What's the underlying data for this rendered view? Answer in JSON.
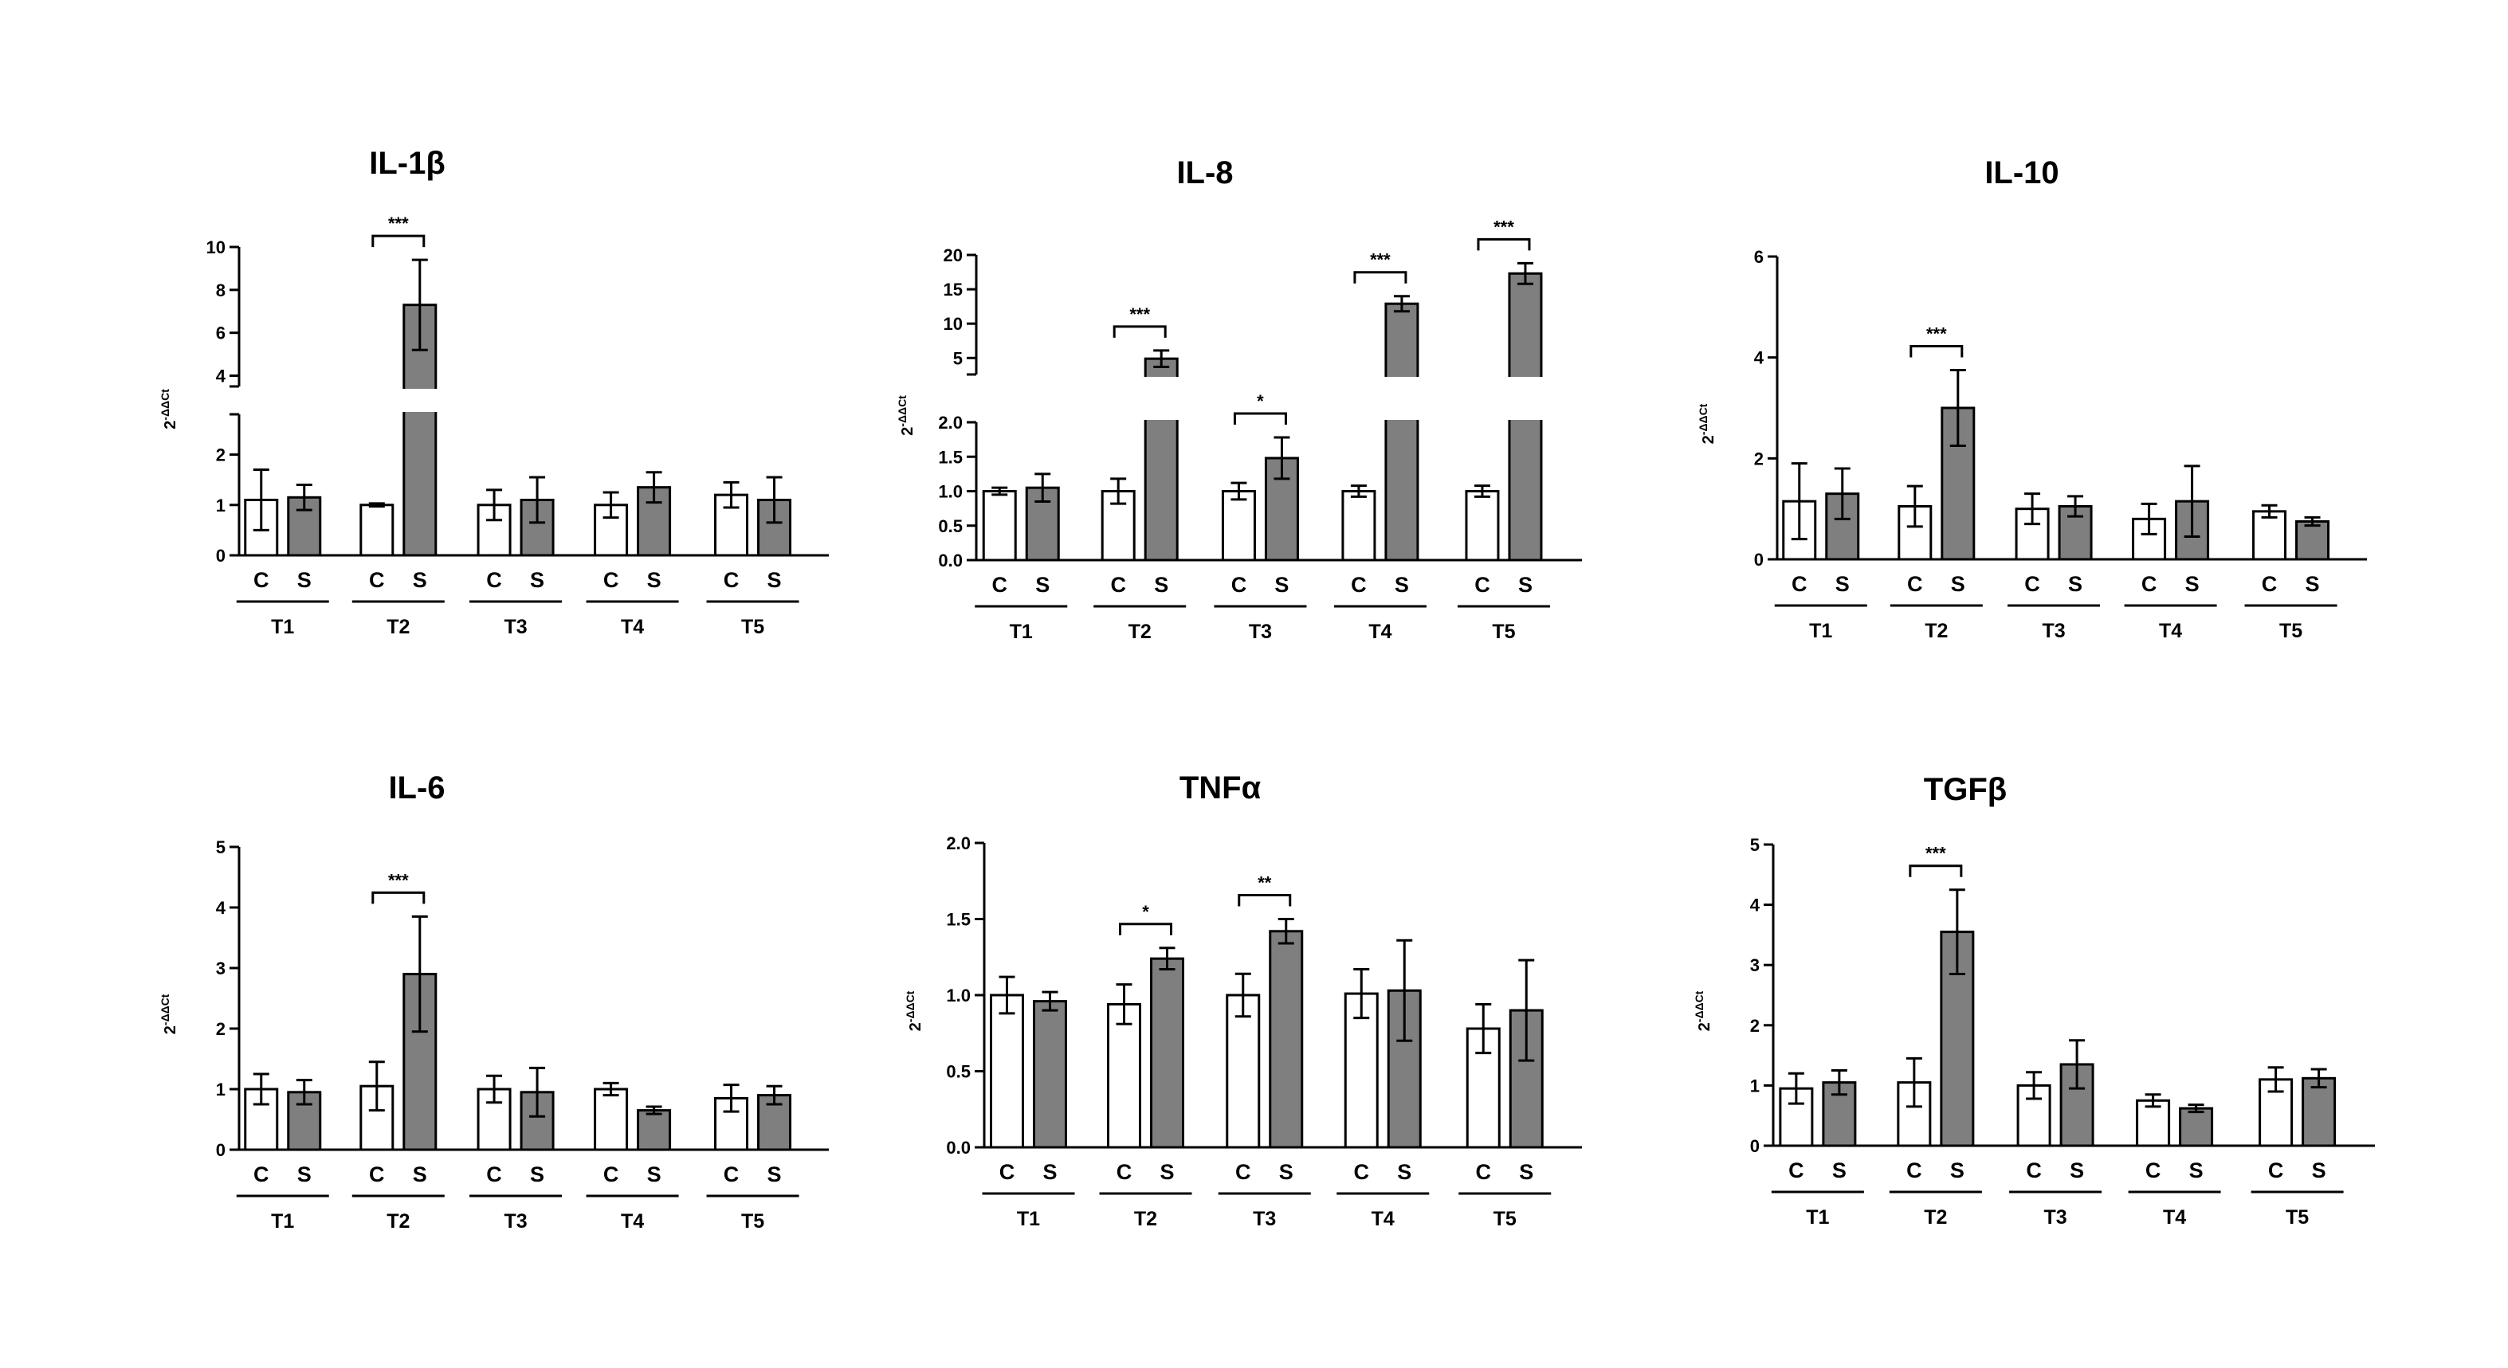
{
  "figure": {
    "background": "#ffffff",
    "control_color": "#ffffff",
    "stim_color": "#7f7f7f",
    "ink": "#000000"
  },
  "chart_data": [
    {
      "type": "bar",
      "title": "IL-1β",
      "ylabel": "2-ΔΔCt",
      "groups": [
        "T1",
        "T2",
        "T3",
        "T4",
        "T5"
      ],
      "conditions": [
        "C",
        "S"
      ],
      "axis_break": {
        "lower": [
          0,
          2.8
        ],
        "upper": [
          3.5,
          10
        ]
      },
      "lower_ticks": [
        0,
        1,
        2
      ],
      "upper_ticks": [
        4,
        6,
        8,
        10
      ],
      "series": [
        {
          "name": "C",
          "values": [
            1.1,
            1.0,
            1.0,
            1.0,
            1.2
          ],
          "errors": [
            0.6,
            0.03,
            0.3,
            0.25,
            0.25
          ]
        },
        {
          "name": "S",
          "values": [
            1.15,
            7.3,
            1.1,
            1.35,
            1.1
          ],
          "errors": [
            0.25,
            2.1,
            0.45,
            0.3,
            0.45
          ]
        }
      ],
      "significance": [
        {
          "group": "T2",
          "label": "***"
        }
      ]
    },
    {
      "type": "bar",
      "title": "IL-8",
      "ylabel": "2-ΔΔCt",
      "groups": [
        "T1",
        "T2",
        "T3",
        "T4",
        "T5"
      ],
      "conditions": [
        "C",
        "S"
      ],
      "axis_break": {
        "lower": [
          0,
          2.0
        ],
        "upper": [
          2.6,
          20
        ]
      },
      "lower_ticks": [
        "0.0",
        "0.5",
        "1.0",
        "1.5",
        "2.0"
      ],
      "upper_ticks": [
        5,
        10,
        15,
        20
      ],
      "series": [
        {
          "name": "C",
          "values": [
            1.0,
            1.0,
            1.0,
            1.0,
            1.0
          ],
          "errors": [
            0.05,
            0.18,
            0.12,
            0.08,
            0.08
          ]
        },
        {
          "name": "S",
          "values": [
            1.05,
            4.9,
            1.48,
            12.9,
            17.3
          ],
          "errors": [
            0.2,
            1.2,
            0.3,
            1.1,
            1.5
          ]
        }
      ],
      "significance": [
        {
          "group": "T2",
          "label": "***"
        },
        {
          "group": "T3",
          "label": "*"
        },
        {
          "group": "T4",
          "label": "***"
        },
        {
          "group": "T5",
          "label": "***"
        }
      ]
    },
    {
      "type": "bar",
      "title": "IL-10",
      "ylabel": "2-ΔΔCt",
      "groups": [
        "T1",
        "T2",
        "T3",
        "T4",
        "T5"
      ],
      "conditions": [
        "C",
        "S"
      ],
      "ylim": [
        0,
        6
      ],
      "ticks": [
        0,
        2,
        4,
        6
      ],
      "series": [
        {
          "name": "C",
          "values": [
            1.15,
            1.05,
            1.0,
            0.8,
            0.95
          ],
          "errors": [
            0.75,
            0.4,
            0.3,
            0.3,
            0.12
          ]
        },
        {
          "name": "S",
          "values": [
            1.3,
            3.0,
            1.05,
            1.15,
            0.75
          ],
          "errors": [
            0.5,
            0.75,
            0.2,
            0.7,
            0.08
          ]
        }
      ],
      "significance": [
        {
          "group": "T2",
          "label": "***"
        }
      ]
    },
    {
      "type": "bar",
      "title": "IL-6",
      "ylabel": "2-ΔΔCt",
      "groups": [
        "T1",
        "T2",
        "T3",
        "T4",
        "T5"
      ],
      "conditions": [
        "C",
        "S"
      ],
      "ylim": [
        0,
        5
      ],
      "ticks": [
        0,
        1,
        2,
        3,
        4,
        5
      ],
      "series": [
        {
          "name": "C",
          "values": [
            1.0,
            1.05,
            1.0,
            1.0,
            0.85
          ],
          "errors": [
            0.25,
            0.4,
            0.22,
            0.1,
            0.22
          ]
        },
        {
          "name": "S",
          "values": [
            0.95,
            2.9,
            0.95,
            0.65,
            0.9
          ],
          "errors": [
            0.2,
            0.95,
            0.4,
            0.06,
            0.15
          ]
        }
      ],
      "significance": [
        {
          "group": "T2",
          "label": "***"
        }
      ]
    },
    {
      "type": "bar",
      "title": "TNFα",
      "ylabel": "2-ΔΔCt",
      "groups": [
        "T1",
        "T2",
        "T3",
        "T4",
        "T5"
      ],
      "conditions": [
        "C",
        "S"
      ],
      "ylim": [
        0,
        2.0
      ],
      "ticks": [
        "0.0",
        "0.5",
        "1.0",
        "1.5",
        "2.0"
      ],
      "series": [
        {
          "name": "C",
          "values": [
            1.0,
            0.94,
            1.0,
            1.01,
            0.78
          ],
          "errors": [
            0.12,
            0.13,
            0.14,
            0.16,
            0.16
          ]
        },
        {
          "name": "S",
          "values": [
            0.96,
            1.24,
            1.42,
            1.03,
            0.9
          ],
          "errors": [
            0.06,
            0.07,
            0.08,
            0.33,
            0.33
          ]
        }
      ],
      "significance": [
        {
          "group": "T2",
          "label": "*"
        },
        {
          "group": "T3",
          "label": "**"
        }
      ]
    },
    {
      "type": "bar",
      "title": "TGFβ",
      "ylabel": "2-ΔΔCt",
      "groups": [
        "T1",
        "T2",
        "T3",
        "T4",
        "T5"
      ],
      "conditions": [
        "C",
        "S"
      ],
      "ylim": [
        0,
        5
      ],
      "ticks": [
        0,
        1,
        2,
        3,
        4,
        5
      ],
      "series": [
        {
          "name": "C",
          "values": [
            0.95,
            1.05,
            1.0,
            0.75,
            1.1
          ],
          "errors": [
            0.25,
            0.4,
            0.22,
            0.1,
            0.2
          ]
        },
        {
          "name": "S",
          "values": [
            1.05,
            3.55,
            1.35,
            0.62,
            1.12
          ],
          "errors": [
            0.2,
            0.7,
            0.4,
            0.06,
            0.15
          ]
        }
      ],
      "significance": [
        {
          "group": "T2",
          "label": "***"
        }
      ]
    }
  ]
}
